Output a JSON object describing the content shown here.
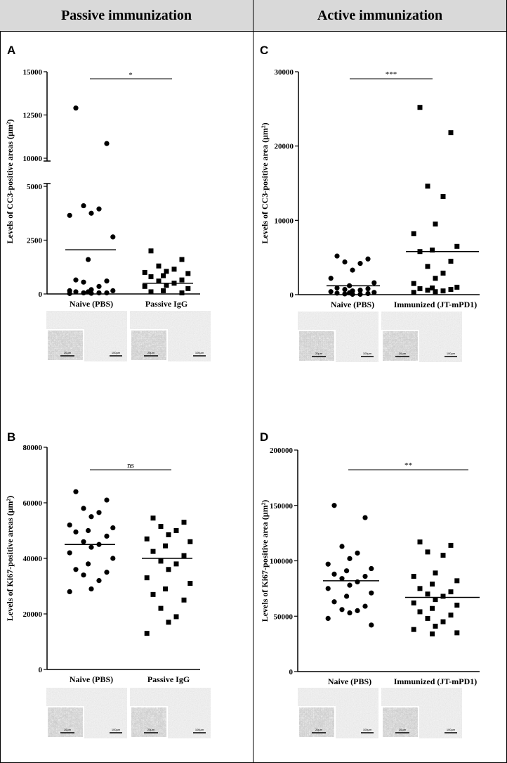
{
  "headers": {
    "left": "Passive immunization",
    "right": "Active immunization"
  },
  "scalebar_labels": {
    "large": "100µm",
    "small": "20µm"
  },
  "chart_data": [
    {
      "id": "A",
      "type": "scatter",
      "ylabel": "Levels of CC3-positive areas (µm²)",
      "yaxis_break": {
        "lower": [
          0,
          5000
        ],
        "upper": [
          10000,
          15000
        ]
      },
      "yticks_lower": [
        0,
        2500,
        5000
      ],
      "yticks_upper": [
        10000,
        12500,
        15000
      ],
      "categories": [
        "Naive (PBS)",
        "Passive IgG"
      ],
      "significance": "*",
      "series": [
        {
          "name": "Naive (PBS)",
          "marker": "circle",
          "mean": 2050,
          "values": [
            12900,
            10850,
            4100,
            3950,
            3750,
            3650,
            2650,
            1600,
            650,
            600,
            550,
            350,
            200,
            150,
            150,
            100,
            100,
            50,
            50,
            50,
            30,
            20
          ]
        },
        {
          "name": "Passive IgG",
          "marker": "square",
          "mean": 500,
          "values": [
            2000,
            1600,
            1300,
            1150,
            1050,
            1000,
            950,
            850,
            800,
            650,
            600,
            500,
            400,
            350,
            250,
            150,
            100,
            50
          ]
        }
      ]
    },
    {
      "id": "C",
      "type": "scatter",
      "ylabel": "Levels of CC3-positive area (µm²)",
      "ylim": [
        0,
        30000
      ],
      "yticks": [
        0,
        10000,
        20000,
        30000
      ],
      "categories": [
        "Naive (PBS)",
        "Immunized (JT-mPD1)"
      ],
      "significance": "***",
      "series": [
        {
          "name": "Naive (PBS)",
          "marker": "circle",
          "mean": 1200,
          "values": [
            5200,
            4800,
            4400,
            4200,
            3300,
            2200,
            1600,
            1200,
            900,
            800,
            700,
            600,
            500,
            400,
            300,
            250,
            200,
            150,
            100,
            50,
            50
          ]
        },
        {
          "name": "Immunized (JT-mPD1)",
          "marker": "square",
          "mean": 5800,
          "values": [
            25200,
            21800,
            14600,
            13200,
            9500,
            8200,
            6500,
            6000,
            5800,
            4500,
            3800,
            2900,
            2200,
            1500,
            1000,
            900,
            800,
            700,
            600,
            500,
            400,
            300
          ]
        }
      ]
    },
    {
      "id": "B",
      "type": "scatter",
      "ylabel": "Levels of Ki67-positive areas (µm²)",
      "ylim": [
        0,
        80000
      ],
      "yticks": [
        0,
        20000,
        40000,
        60000,
        80000
      ],
      "categories": [
        "Naive (PBS)",
        "Passive IgG"
      ],
      "significance": "ns",
      "series": [
        {
          "name": "Naive (PBS)",
          "marker": "circle",
          "mean": 45000,
          "values": [
            64000,
            61000,
            58000,
            56500,
            55000,
            52000,
            51000,
            50000,
            49500,
            48000,
            46000,
            45000,
            44000,
            42000,
            40000,
            38000,
            36000,
            35000,
            34000,
            32000,
            29000,
            28000
          ]
        },
        {
          "name": "Passive IgG",
          "marker": "square",
          "mean": 40000,
          "values": [
            54500,
            53000,
            51500,
            50000,
            48500,
            47000,
            46000,
            44500,
            42500,
            41000,
            39000,
            38000,
            36000,
            33000,
            31000,
            29000,
            27000,
            25000,
            22000,
            19000,
            17000,
            13000
          ]
        }
      ]
    },
    {
      "id": "D",
      "type": "scatter",
      "ylabel": "Levels of Ki67-positive area (µm²)",
      "ylim": [
        0,
        200000
      ],
      "yticks": [
        0,
        50000,
        100000,
        150000,
        200000
      ],
      "categories": [
        "Naive (PBS)",
        "Immunized (JT-mPD1)"
      ],
      "significance": "**",
      "series": [
        {
          "name": "Naive (PBS)",
          "marker": "circle",
          "mean": 82000,
          "values": [
            150000,
            139000,
            113000,
            107000,
            102000,
            97000,
            93000,
            91000,
            88000,
            86000,
            84000,
            81000,
            78000,
            75000,
            71000,
            68000,
            63000,
            59000,
            56000,
            55000,
            53000,
            48000,
            42000
          ]
        },
        {
          "name": "Immunized (JT-mPD1)",
          "marker": "square",
          "mean": 67000,
          "values": [
            117000,
            114000,
            108000,
            105000,
            89000,
            86000,
            82000,
            79000,
            75000,
            72000,
            70000,
            68000,
            65000,
            62000,
            60000,
            57000,
            54000,
            51000,
            48000,
            45000,
            41000,
            38000,
            35000,
            34000
          ]
        }
      ]
    }
  ]
}
